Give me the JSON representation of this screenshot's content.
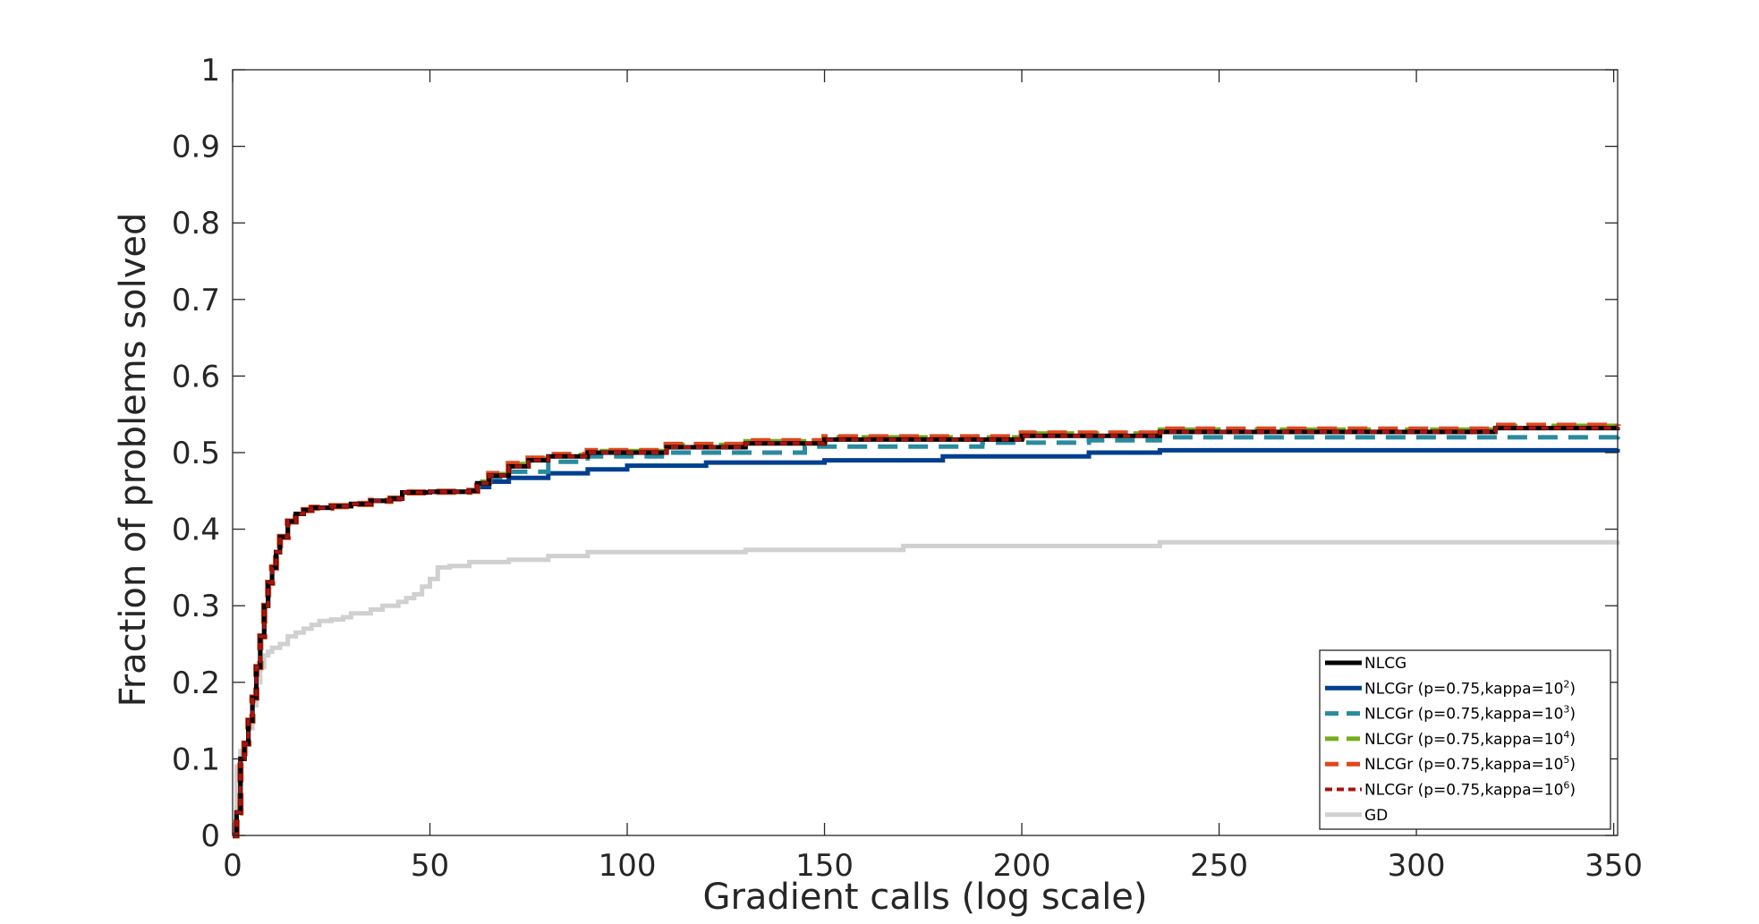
{
  "chart_data": {
    "type": "line",
    "title": "",
    "xlabel": "Gradient calls (log scale)",
    "ylabel": "Fraction of problems solved",
    "xlim": [
      0,
      351
    ],
    "ylim": [
      0,
      1
    ],
    "xticks": [
      "0",
      "50",
      "100",
      "150",
      "200",
      "250",
      "300",
      "350"
    ],
    "xtick_values": [
      0,
      50,
      100,
      150,
      200,
      250,
      300,
      350
    ],
    "yticks": [
      "0",
      "0.1",
      "0.2",
      "0.3",
      "0.4",
      "0.5",
      "0.6",
      "0.7",
      "0.8",
      "0.9",
      "1"
    ],
    "ytick_values": [
      0,
      0.1,
      0.2,
      0.3,
      0.4,
      0.5,
      0.6,
      0.7,
      0.8,
      0.9,
      1
    ],
    "grid": false,
    "legend_position": "bottom-right",
    "legend": [
      {
        "label": "NLCG",
        "sup": ""
      },
      {
        "label": "NLCGr (p=0.75,kappa=10",
        "sup": "2",
        "close": ")"
      },
      {
        "label": "NLCGr (p=0.75,kappa=10",
        "sup": "3",
        "close": ")"
      },
      {
        "label": "NLCGr (p=0.75,kappa=10",
        "sup": "4",
        "close": ")"
      },
      {
        "label": "NLCGr (p=0.75,kappa=10",
        "sup": "5",
        "close": ")"
      },
      {
        "label": "NLCGr (p=0.75,kappa=10",
        "sup": "6",
        "close": ")"
      },
      {
        "label": "GD",
        "sup": ""
      }
    ],
    "series": [
      {
        "id": "gd",
        "color": "#d0d0d0",
        "dash": "",
        "width": 5,
        "x": [
          0,
          1,
          2,
          3,
          4,
          5,
          6,
          7,
          8,
          9,
          10,
          12,
          14,
          16,
          18,
          20,
          22,
          25,
          28,
          30,
          32,
          35,
          38,
          40,
          42,
          44,
          46,
          48,
          50,
          52,
          55,
          60,
          70,
          80,
          90,
          100,
          130,
          170,
          235,
          351
        ],
        "y": [
          0.0,
          0.09,
          0.11,
          0.12,
          0.14,
          0.17,
          0.2,
          0.22,
          0.235,
          0.24,
          0.245,
          0.25,
          0.26,
          0.265,
          0.27,
          0.275,
          0.28,
          0.282,
          0.285,
          0.29,
          0.29,
          0.295,
          0.3,
          0.3,
          0.305,
          0.31,
          0.315,
          0.325,
          0.335,
          0.35,
          0.352,
          0.357,
          0.36,
          0.365,
          0.37,
          0.37,
          0.373,
          0.378,
          0.383,
          0.385
        ]
      },
      {
        "id": "nlcgr-k2",
        "color": "#003f8f",
        "dash": "",
        "width": 5,
        "x": [
          0,
          1,
          2,
          3,
          4,
          5,
          6,
          7,
          8,
          9,
          10,
          11,
          12,
          14,
          16,
          18,
          20,
          25,
          30,
          35,
          40,
          43,
          50,
          60,
          62,
          65,
          70,
          80,
          90,
          100,
          120,
          150,
          180,
          217,
          235,
          351
        ],
        "y": [
          0.0,
          0.03,
          0.1,
          0.12,
          0.15,
          0.18,
          0.22,
          0.26,
          0.3,
          0.33,
          0.35,
          0.37,
          0.39,
          0.41,
          0.42,
          0.425,
          0.428,
          0.43,
          0.433,
          0.437,
          0.44,
          0.448,
          0.449,
          0.45,
          0.455,
          0.462,
          0.467,
          0.473,
          0.478,
          0.483,
          0.487,
          0.49,
          0.495,
          0.5,
          0.503,
          0.505
        ]
      },
      {
        "id": "nlcgr-k3",
        "color": "#2a8a9e",
        "dash": "22,12",
        "width": 5,
        "x": [
          0,
          1,
          2,
          3,
          4,
          5,
          6,
          7,
          8,
          9,
          10,
          11,
          12,
          14,
          16,
          18,
          20,
          25,
          30,
          35,
          40,
          43,
          50,
          60,
          62,
          65,
          70,
          80,
          90,
          110,
          145,
          190,
          217,
          235,
          351
        ],
        "y": [
          0.0,
          0.03,
          0.1,
          0.12,
          0.15,
          0.18,
          0.22,
          0.26,
          0.3,
          0.33,
          0.35,
          0.37,
          0.39,
          0.41,
          0.42,
          0.425,
          0.428,
          0.43,
          0.433,
          0.437,
          0.44,
          0.448,
          0.449,
          0.45,
          0.458,
          0.468,
          0.475,
          0.488,
          0.495,
          0.5,
          0.508,
          0.513,
          0.516,
          0.52,
          0.522
        ]
      },
      {
        "id": "nlcgr-k4",
        "color": "#77ac1c",
        "dash": "18,10",
        "width": 5,
        "x": [
          0,
          1,
          2,
          3,
          4,
          5,
          6,
          7,
          8,
          9,
          10,
          11,
          12,
          14,
          16,
          18,
          20,
          25,
          30,
          35,
          40,
          43,
          50,
          60,
          62,
          65,
          70,
          75,
          80,
          90,
          110,
          130,
          150,
          200,
          235,
          320,
          351
        ],
        "y": [
          0.0,
          0.03,
          0.1,
          0.12,
          0.15,
          0.18,
          0.22,
          0.26,
          0.3,
          0.33,
          0.35,
          0.37,
          0.39,
          0.41,
          0.42,
          0.425,
          0.428,
          0.43,
          0.433,
          0.437,
          0.44,
          0.448,
          0.449,
          0.45,
          0.462,
          0.472,
          0.485,
          0.492,
          0.497,
          0.502,
          0.51,
          0.515,
          0.52,
          0.525,
          0.53,
          0.535,
          0.537
        ]
      },
      {
        "id": "nlcgr-k5",
        "color": "#e0481e",
        "dash": "22,12",
        "width": 7,
        "x": [
          0,
          1,
          2,
          3,
          4,
          5,
          6,
          7,
          8,
          9,
          10,
          11,
          12,
          14,
          16,
          18,
          20,
          25,
          30,
          35,
          40,
          43,
          50,
          60,
          62,
          65,
          70,
          75,
          80,
          90,
          110,
          130,
          150,
          200,
          235,
          320,
          351
        ],
        "y": [
          0.0,
          0.03,
          0.1,
          0.12,
          0.15,
          0.18,
          0.22,
          0.26,
          0.3,
          0.33,
          0.35,
          0.37,
          0.39,
          0.41,
          0.42,
          0.425,
          0.428,
          0.43,
          0.433,
          0.437,
          0.44,
          0.448,
          0.449,
          0.45,
          0.462,
          0.472,
          0.485,
          0.492,
          0.497,
          0.502,
          0.51,
          0.515,
          0.52,
          0.525,
          0.53,
          0.535,
          0.537
        ]
      },
      {
        "id": "nlcg",
        "color": "#000000",
        "dash": "",
        "width": 5,
        "x": [
          0,
          1,
          2,
          3,
          4,
          5,
          6,
          7,
          8,
          9,
          10,
          11,
          12,
          14,
          16,
          18,
          20,
          25,
          30,
          35,
          40,
          43,
          50,
          60,
          62,
          65,
          70,
          75,
          80,
          90,
          110,
          130,
          150,
          200,
          235,
          320,
          351
        ],
        "y": [
          0.0,
          0.03,
          0.1,
          0.12,
          0.15,
          0.18,
          0.22,
          0.26,
          0.3,
          0.33,
          0.35,
          0.37,
          0.39,
          0.41,
          0.42,
          0.425,
          0.428,
          0.43,
          0.433,
          0.437,
          0.44,
          0.448,
          0.449,
          0.45,
          0.46,
          0.47,
          0.482,
          0.49,
          0.495,
          0.5,
          0.507,
          0.512,
          0.517,
          0.522,
          0.527,
          0.532,
          0.533
        ]
      },
      {
        "id": "nlcgr-k6",
        "color": "#a81410",
        "dash": "8,6",
        "width": 4,
        "x": [
          0,
          1,
          2,
          3,
          4,
          5,
          6,
          7,
          8,
          9,
          10,
          11,
          12,
          14,
          16,
          18,
          20,
          25,
          30,
          35,
          40,
          43,
          50,
          60,
          62,
          65,
          70,
          75,
          80,
          90,
          110,
          130,
          150,
          200,
          235,
          320,
          351
        ],
        "y": [
          0.0,
          0.03,
          0.1,
          0.12,
          0.15,
          0.18,
          0.22,
          0.26,
          0.3,
          0.33,
          0.35,
          0.37,
          0.39,
          0.41,
          0.42,
          0.425,
          0.428,
          0.43,
          0.433,
          0.437,
          0.44,
          0.448,
          0.449,
          0.45,
          0.46,
          0.47,
          0.482,
          0.49,
          0.495,
          0.5,
          0.507,
          0.512,
          0.517,
          0.522,
          0.527,
          0.532,
          0.534
        ]
      }
    ],
    "legend_order": [
      "nlcg",
      "nlcgr-k2",
      "nlcgr-k3",
      "nlcgr-k4",
      "nlcgr-k5",
      "nlcgr-k6",
      "gd"
    ]
  }
}
